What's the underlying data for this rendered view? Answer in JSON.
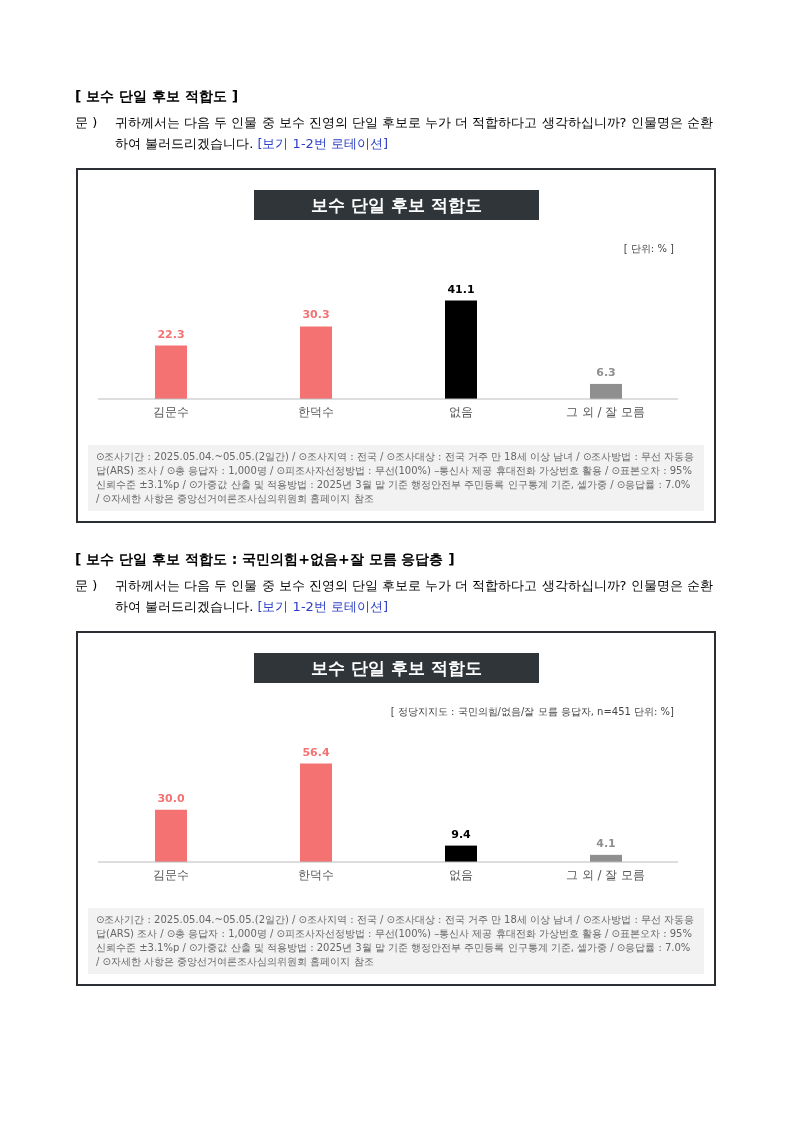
{
  "chart_data": [
    {
      "type": "bar",
      "title": "보수 단일 후보 적합도",
      "annotations": [
        "[ 보수 단일 후보 적합도 ]",
        "문 )",
        "귀하께서는 다음 두 인물 중 보수 진영의 단일 후보로 누가 더 적합하다고 생각하십니까? 인물명은 순환하여 불러드리겠습니다.",
        "[보기 1-2번 로테이션]",
        "[ 단위: % ]",
        "⊙조사기간 : 2025.05.04.~05.05.(2일간) / ⊙조사지역 : 전국 / ⊙조사대상 : 전국 거주 만 18세 이상 남녀 / ⊙조사방법 : 무선 자동응답(ARS) 조사 / ⊙총 응답자 : 1,000명 / ⊙피조사자선정방법 : 무선(100%) –통신사 제공 휴대전화 가상번호 활용 / ⊙표본오차 : 95% 신뢰수준 ±3.1%p / ⊙가중값 산출 및 적용방법 : 2025년 3월 말 기준 행정안전부 주민등록 인구통계 기준, 셀가중 / ⊙응답률 : 7.0% / ⊙자세한 사항은 중앙선거여론조사심의위원회 홈페이지 참조"
      ],
      "categories": [
        "김문수",
        "한덕수",
        "없음",
        "그 외 / 잘 모름"
      ],
      "values": [
        22.3,
        30.3,
        41.1,
        6.3
      ],
      "colors": [
        "#f47272",
        "#f47272",
        "#000000",
        "#8f8f8f"
      ],
      "value_labels": [
        "22.3",
        "30.3",
        "41.1",
        "6.3"
      ]
    },
    {
      "type": "bar",
      "title": "보수 단일 후보 적합도",
      "annotations": [
        "[ 보수 단일 후보 적합도 : 국민의힘+없음+잘 모름 응답층 ]",
        "문 )",
        "귀하께서는 다음 두 인물 중 보수 진영의 단일 후보로 누가 더 적합하다고 생각하십니까? 인물명은 순환하여 불러드리겠습니다.",
        "[보기 1-2번 로테이션]",
        "[ 정당지지도 : 국민의힘/없음/잘 모름 응답자, n=451 단위: %]",
        "⊙조사기간 : 2025.05.04.~05.05.(2일간) / ⊙조사지역 : 전국 / ⊙조사대상 : 전국 거주 만 18세 이상 남녀 / ⊙조사방법 : 무선 자동응답(ARS) 조사 / ⊙총 응답자 : 1,000명 / ⊙피조사자선정방법 : 무선(100%) –통신사 제공 휴대전화 가상번호 활용 / ⊙표본오차 : 95% 신뢰수준 ±3.1%p / ⊙가중값 산출 및 적용방법 : 2025년 3월 말 기준 행정안전부 주민등록 인구통계 기준, 셀가중 / ⊙응답률 : 7.0% / ⊙자세한 사항은 중앙선거여론조사심의위원회 홈페이지 참조"
      ],
      "categories": [
        "김문수",
        "한덕수",
        "없음",
        "그 외 / 잘 모름"
      ],
      "values": [
        30.0,
        56.4,
        9.4,
        4.1
      ],
      "colors": [
        "#f47272",
        "#f47272",
        "#000000",
        "#8f8f8f"
      ],
      "value_labels": [
        "30.0",
        "56.4",
        "9.4",
        "4.1"
      ]
    }
  ]
}
